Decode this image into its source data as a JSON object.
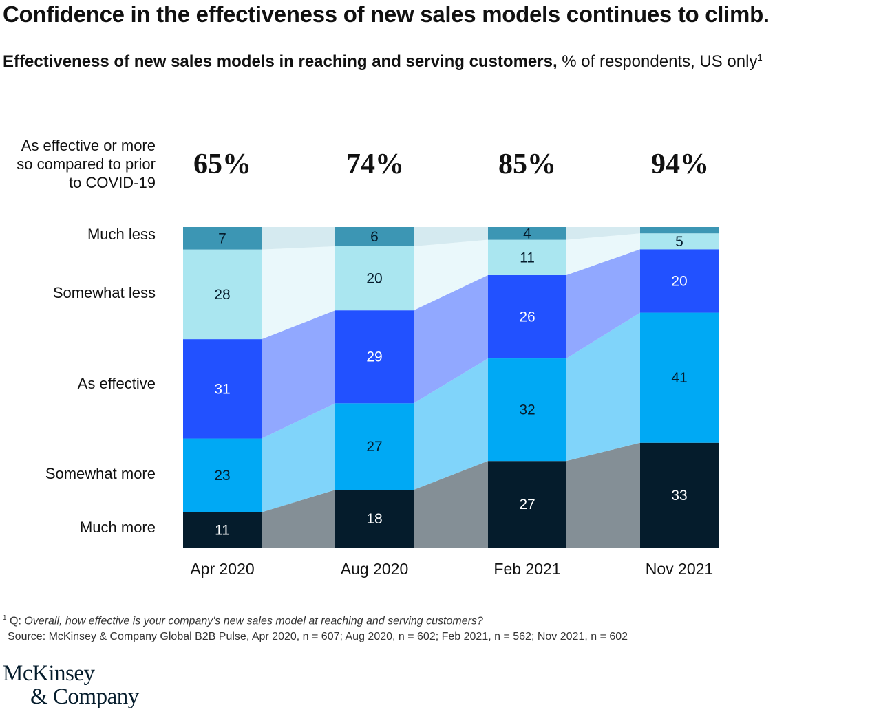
{
  "header": {
    "title": "Confidence in the effectiveness of new sales models continues to climb.",
    "subtitle_bold": "Effectiveness of new sales models in reaching and serving customers,",
    "subtitle_rest": " % of respondents, US only",
    "subtitle_sup": "1"
  },
  "effective_label_lines": [
    "As effective or more",
    "so compared to prior",
    "to COVID-19"
  ],
  "effective_totals": [
    "65%",
    "74%",
    "85%",
    "94%"
  ],
  "chart_data": {
    "type": "bar",
    "stacked": true,
    "categories": [
      "Apr 2020",
      "Aug 2020",
      "Feb 2021",
      "Nov 2021"
    ],
    "series": [
      {
        "name": "Much more",
        "values": [
          11,
          18,
          27,
          33
        ],
        "color": "#051c2c",
        "band_color": "#848f96",
        "label_color": "#ffffff"
      },
      {
        "name": "Somewhat more",
        "values": [
          23,
          27,
          32,
          41
        ],
        "color": "#00a9f4",
        "band_color": "#80d4fa",
        "label_color": "#051c2c"
      },
      {
        "name": "As effective",
        "values": [
          31,
          29,
          26,
          20
        ],
        "color": "#2251ff",
        "band_color": "#91a8ff",
        "label_color": "#ffffff"
      },
      {
        "name": "Somewhat less",
        "values": [
          28,
          20,
          11,
          5
        ],
        "color": "#aae6f0",
        "band_color": "#eaf8fb",
        "label_color": "#051c2c"
      },
      {
        "name": "Much less",
        "values": [
          7,
          6,
          4,
          2
        ],
        "color": "#3c96b4",
        "band_color": "#d5eaf0",
        "label_color": "#051c2c",
        "labels": [
          "7",
          "6",
          "4",
          ""
        ]
      }
    ],
    "ylim": [
      0,
      100
    ],
    "xlabel": "",
    "ylabel": ""
  },
  "footnote": {
    "sup": "1",
    "prefix": " Q: ",
    "question": "Overall, how effective is your company's new sales model at reaching and serving customers?"
  },
  "source": "Source: McKinsey & Company Global B2B Pulse, Apr 2020, n = 607; Aug 2020, n = 602; Feb 2021, n = 562; Nov 2021, n = 602",
  "logo": {
    "line1": "McKinsey",
    "line2": "& Company"
  }
}
